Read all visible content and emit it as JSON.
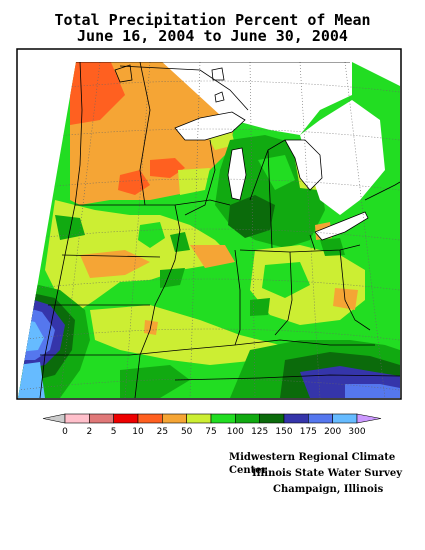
{
  "title": {
    "line1": "Total Precipitation Percent of Mean",
    "line2": "June 16, 2004 to June 30, 2004"
  },
  "map": {
    "variable": "Percent of mean precipitation",
    "region": "Midwest United States",
    "colors": {
      "0": "#ffc0cb",
      "2": "#e07878",
      "5": "#ee0000",
      "10": "#ff6020",
      "25": "#f5a535",
      "50": "#ccee33",
      "75": "#22dd22",
      "100": "#11aa11",
      "125": "#0b6b0b",
      "150": "#3535aa",
      "175": "#5577ee",
      "200": "#66bbff",
      "300": "#cc99ff"
    }
  },
  "legend": {
    "ticks": [
      "0",
      "2",
      "5",
      "10",
      "25",
      "50",
      "75",
      "100",
      "125",
      "150",
      "175",
      "200",
      "300"
    ],
    "colors": [
      "#ffc0cb",
      "#e07878",
      "#ee0000",
      "#ff6020",
      "#f5a535",
      "#ccee33",
      "#22dd22",
      "#11aa11",
      "#0b6b0b",
      "#3535aa",
      "#5577ee",
      "#66bbff"
    ],
    "low_arrow_color": "#cccccc",
    "high_arrow_color": "#cc99ff"
  },
  "credits": {
    "line1": "Midwestern Regional Climate Center",
    "line2": "Illinois State Water Survey",
    "line3": "Champaign, Illinois"
  }
}
